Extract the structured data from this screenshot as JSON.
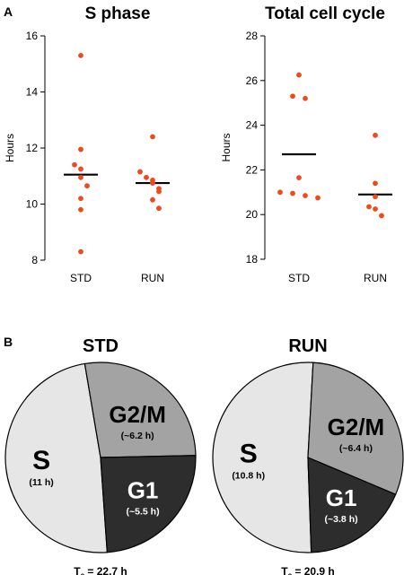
{
  "panels": {
    "a_label": "A",
    "b_label": "B"
  },
  "colors": {
    "dot": "#ee4a1e",
    "axis": "#000000",
    "s_phase": "#e6e6e6",
    "g2m": "#a3a3a3",
    "g1": "#2d2d2d",
    "pie_border": "#000000"
  },
  "chart_data": [
    {
      "type": "scatter",
      "title": "S phase",
      "ylabel": "Hours",
      "ylim": [
        8,
        16
      ],
      "yticks": [
        8,
        10,
        12,
        14,
        16
      ],
      "categories": [
        "STD",
        "RUN"
      ],
      "points": {
        "STD": [
          15.3,
          11.95,
          11.4,
          11.25,
          10.95,
          10.65,
          10.2,
          9.8,
          8.3
        ],
        "RUN": [
          12.4,
          11.15,
          10.95,
          10.85,
          10.75,
          10.55,
          10.45,
          10.15,
          9.85
        ]
      },
      "means": {
        "STD": 11.05,
        "RUN": 10.75
      }
    },
    {
      "type": "scatter",
      "title": "Total cell cycle",
      "ylabel": "Hours",
      "ylim": [
        18,
        28
      ],
      "yticks": [
        18,
        20,
        22,
        24,
        26,
        28
      ],
      "categories": [
        "STD",
        "RUN"
      ],
      "points": {
        "STD": [
          26.25,
          25.3,
          25.2,
          21.65,
          21.0,
          20.95,
          20.85,
          20.75
        ],
        "RUN": [
          23.55,
          21.4,
          20.8,
          20.35,
          20.25,
          19.95
        ]
      },
      "means": {
        "STD": 22.7,
        "RUN": 20.9
      }
    },
    {
      "type": "pie",
      "title": "STD",
      "slices": [
        {
          "phase": "S",
          "hours_label": "(11 h)",
          "value": 11.0
        },
        {
          "phase": "G2/M",
          "hours_label": "(~6.2 h)",
          "value": 6.2
        },
        {
          "phase": "G1",
          "hours_label": "(~5.5 h)",
          "value": 5.5
        }
      ],
      "tc": {
        "prefix": "T",
        "sub": "c",
        "text": " = 22.7 h"
      }
    },
    {
      "type": "pie",
      "title": "RUN",
      "slices": [
        {
          "phase": "S",
          "hours_label": "(10.8 h)",
          "value": 10.8
        },
        {
          "phase": "G2/M",
          "hours_label": "(~6.4 h)",
          "value": 6.4
        },
        {
          "phase": "G1",
          "hours_label": "(~3.8 h)",
          "value": 3.8
        }
      ],
      "tc": {
        "prefix": "T",
        "sub": "c",
        "text": " = 20.9 h"
      }
    }
  ]
}
